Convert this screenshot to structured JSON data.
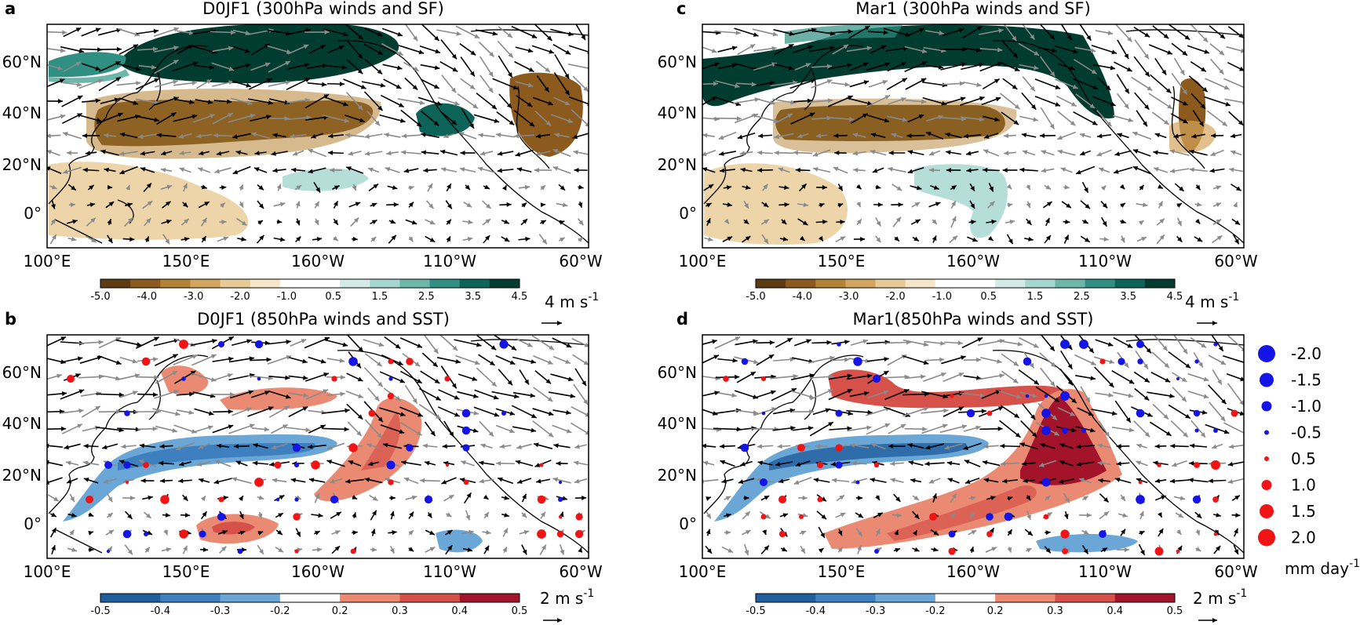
{
  "panels": [
    {
      "letter": "a",
      "title": "D0JF1 (300hPa winds and SF)",
      "type": "sf"
    },
    {
      "letter": "b",
      "title": "D0JF1 (850hPa winds and SST)",
      "type": "sst"
    },
    {
      "letter": "c",
      "title": "Mar1 (300hPa winds and SF)",
      "type": "sf"
    },
    {
      "letter": "d",
      "title": "Mar1(850hPa winds and SST)",
      "type": "sst"
    }
  ],
  "lat_ticks": [
    "60°N",
    "40°N",
    "20°N",
    "0°"
  ],
  "lon_ticks": [
    "100°E",
    "150°E",
    "160°W",
    "110°W",
    "60°W"
  ],
  "colorbars": {
    "sf": {
      "ticks": [
        "-5.0",
        "-4.0",
        "-3.0",
        "-2.0",
        "-1.0",
        "0.5",
        "1.5",
        "2.5",
        "3.5",
        "4.5"
      ],
      "colors": [
        "#5e3c12",
        "#8c5a1c",
        "#b58132",
        "#d4a55e",
        "#e8cb94",
        "#f4e6c7",
        "#ffffff",
        "#ffffff",
        "#d2ebe7",
        "#a3d6cf",
        "#6db7aa",
        "#2f8f82",
        "#0b6457",
        "#003d30"
      ]
    },
    "sst": {
      "ticks": [
        "-0.5",
        "-0.4",
        "-0.3",
        "-0.2",
        "0.2",
        "0.3",
        "0.4",
        "0.5"
      ],
      "colors": [
        "#1f5f9e",
        "#3d7fbf",
        "#6aa6d6",
        "#ffffff",
        "#ea8a72",
        "#d6514a",
        "#a3142a"
      ]
    }
  },
  "wind_scales": {
    "sf": "4 m s",
    "sst": "2 m s",
    "sup": "-1"
  },
  "precip_legend": {
    "entries": [
      "-2.0",
      "-1.5",
      "-1.0",
      "-0.5",
      "0.5",
      "1.0",
      "1.5",
      "2.0"
    ],
    "unit": "mm day",
    "unit_sup": "-1",
    "neg_color": "#1414e6",
    "pos_color": "#f01414"
  }
}
